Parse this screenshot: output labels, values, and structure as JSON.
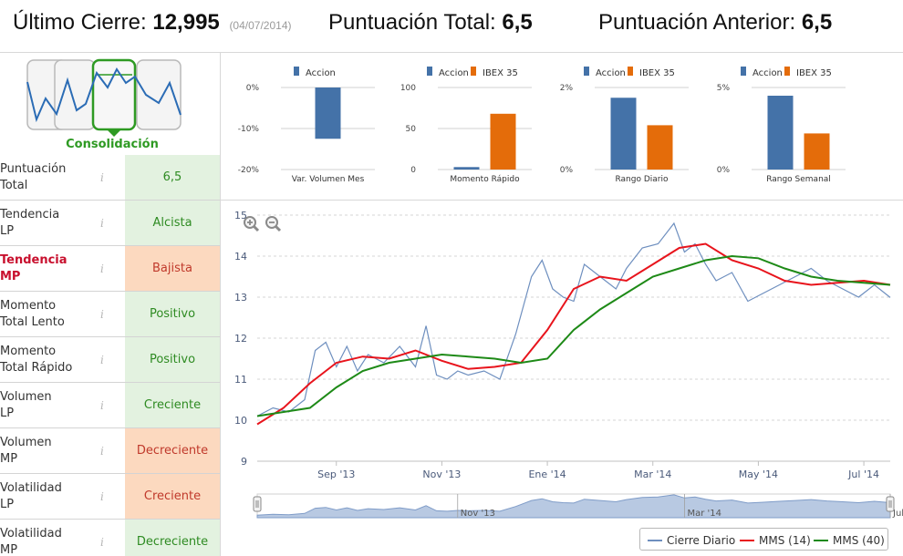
{
  "header": {
    "ultimo_label": "Último Cierre:",
    "ultimo_value": "12,995",
    "ultimo_date": "(04/07/2014)",
    "total_label": "Puntuación Total:",
    "total_value": "6,5",
    "anterior_label": "Puntuación Anterior:",
    "anterior_value": "6,5"
  },
  "pattern": {
    "label": "Consolidación",
    "icon": "consolidation-pattern-icon"
  },
  "rows": [
    {
      "l1": "Puntuación",
      "l2": "Total",
      "value": "6,5",
      "status": "pos",
      "label_red": false
    },
    {
      "l1": "Tendencia",
      "l2": "LP",
      "value": "Alcista",
      "status": "pos",
      "label_red": false
    },
    {
      "l1": "Tendencia",
      "l2": "MP",
      "value": "Bajista",
      "status": "neg",
      "label_red": true
    },
    {
      "l1": "Momento",
      "l2": "Total Lento",
      "value": "Positivo",
      "status": "pos",
      "label_red": false
    },
    {
      "l1": "Momento",
      "l2": "Total Rápido",
      "value": "Positivo",
      "status": "pos",
      "label_red": false
    },
    {
      "l1": "Volumen",
      "l2": "LP",
      "value": "Creciente",
      "status": "pos",
      "label_red": false
    },
    {
      "l1": "Volumen",
      "l2": "MP",
      "value": "Decreciente",
      "status": "neg",
      "label_red": false
    },
    {
      "l1": "Volatilidad",
      "l2": "LP",
      "value": "Creciente",
      "status": "neg",
      "label_red": false
    },
    {
      "l1": "Volatilidad",
      "l2": "MP",
      "value": "Decreciente",
      "status": "pos",
      "label_red": false
    }
  ],
  "colors": {
    "accion": "#4472a8",
    "ibex": "#e46c0a",
    "cierre": "#6e8fbf",
    "mms14": "#e8141c",
    "mms40": "#1e8a17",
    "pos_bg": "#e3f2e0",
    "neg_bg": "#fcd9bf"
  },
  "chart_data": [
    {
      "type": "bar",
      "title": "Var. Volumen Mes",
      "series": [
        {
          "name": "Accion",
          "values": [
            -12.5
          ]
        }
      ],
      "yticks": [
        "0%",
        "-10%",
        "-20%"
      ],
      "ylim": [
        -20,
        0
      ]
    },
    {
      "type": "bar",
      "title": "Momento Rápido",
      "series": [
        {
          "name": "Accion",
          "values": [
            3
          ]
        },
        {
          "name": "IBEX 35",
          "values": [
            68
          ]
        }
      ],
      "yticks": [
        "100",
        "50",
        "0"
      ],
      "ylim": [
        0,
        100
      ]
    },
    {
      "type": "bar",
      "title": "Rango Diario",
      "series": [
        {
          "name": "Accion",
          "values": [
            1.75
          ]
        },
        {
          "name": "IBEX 35",
          "values": [
            1.08
          ]
        }
      ],
      "yticks": [
        "2%",
        "0%"
      ],
      "ylim": [
        0,
        2
      ]
    },
    {
      "type": "bar",
      "title": "Rango Semanal",
      "series": [
        {
          "name": "Accion",
          "values": [
            4.5
          ]
        },
        {
          "name": "IBEX 35",
          "values": [
            2.2
          ]
        }
      ],
      "yticks": [
        "5%",
        "0%"
      ],
      "ylim": [
        0,
        5
      ]
    },
    {
      "type": "line",
      "y_ticks": [
        "15",
        "14",
        "13",
        "12",
        "11",
        "10",
        "9"
      ],
      "ylim": [
        9,
        15
      ],
      "x_ticks": [
        "Sep '13",
        "Nov '13",
        "Ene '14",
        "Mar '14",
        "May '14",
        "Jul '14"
      ],
      "x_tick_pos": [
        1.5,
        3.5,
        5.5,
        7.5,
        9.5,
        11.5
      ],
      "xlim": [
        0,
        12
      ],
      "navigator_labels": [
        "Nov '13",
        "Mar '14",
        "Jul"
      ],
      "navigator_label_pos": [
        3.8,
        8.1,
        12.0
      ],
      "legend": [
        "Cierre Diario",
        "MMS (14)",
        "MMS (40)"
      ],
      "series": [
        {
          "name": "Cierre Diario",
          "x": [
            0,
            0.3,
            0.6,
            0.9,
            1.1,
            1.3,
            1.5,
            1.7,
            1.9,
            2.1,
            2.4,
            2.7,
            3.0,
            3.2,
            3.4,
            3.6,
            3.8,
            4.0,
            4.3,
            4.6,
            4.9,
            5.2,
            5.4,
            5.6,
            5.8,
            6.0,
            6.2,
            6.5,
            6.8,
            7.0,
            7.3,
            7.6,
            7.9,
            8.1,
            8.3,
            8.5,
            8.7,
            9.0,
            9.3,
            9.6,
            9.9,
            10.2,
            10.5,
            10.8,
            11.1,
            11.4,
            11.7,
            12.0
          ],
          "y": [
            10.1,
            10.3,
            10.2,
            10.5,
            11.7,
            11.9,
            11.3,
            11.8,
            11.2,
            11.6,
            11.4,
            11.8,
            11.3,
            12.3,
            11.1,
            11.0,
            11.2,
            11.1,
            11.2,
            11.0,
            12.1,
            13.5,
            13.9,
            13.2,
            13.0,
            12.9,
            13.8,
            13.5,
            13.2,
            13.7,
            14.2,
            14.3,
            14.8,
            14.1,
            14.3,
            13.8,
            13.4,
            13.6,
            12.9,
            13.1,
            13.3,
            13.5,
            13.7,
            13.4,
            13.2,
            13.0,
            13.3,
            12.99
          ]
        },
        {
          "name": "MMS (14)",
          "x": [
            0,
            0.5,
            1.0,
            1.5,
            2.0,
            2.5,
            3.0,
            3.5,
            4.0,
            4.5,
            5.0,
            5.5,
            6.0,
            6.5,
            7.0,
            7.5,
            8.0,
            8.5,
            9.0,
            9.5,
            10.0,
            10.5,
            11.0,
            11.5,
            12.0
          ],
          "y": [
            9.9,
            10.3,
            10.9,
            11.4,
            11.55,
            11.5,
            11.7,
            11.45,
            11.25,
            11.3,
            11.4,
            12.2,
            13.2,
            13.5,
            13.4,
            13.8,
            14.2,
            14.3,
            13.9,
            13.7,
            13.4,
            13.3,
            13.35,
            13.4,
            13.3
          ],
          "note_visible": true
        },
        {
          "name": "MMS (40)",
          "x": [
            0,
            0.5,
            1.0,
            1.5,
            2.0,
            2.5,
            3.0,
            3.5,
            4.0,
            4.5,
            5.0,
            5.5,
            6.0,
            6.5,
            7.0,
            7.5,
            8.0,
            8.5,
            9.0,
            9.5,
            10.0,
            10.5,
            11.0,
            11.5,
            12.0
          ],
          "y": [
            10.1,
            10.2,
            10.3,
            10.8,
            11.2,
            11.4,
            11.5,
            11.6,
            11.55,
            11.5,
            11.4,
            11.5,
            12.2,
            12.7,
            13.1,
            13.5,
            13.7,
            13.9,
            14.0,
            13.95,
            13.7,
            13.5,
            13.4,
            13.35,
            13.3
          ]
        }
      ]
    }
  ]
}
